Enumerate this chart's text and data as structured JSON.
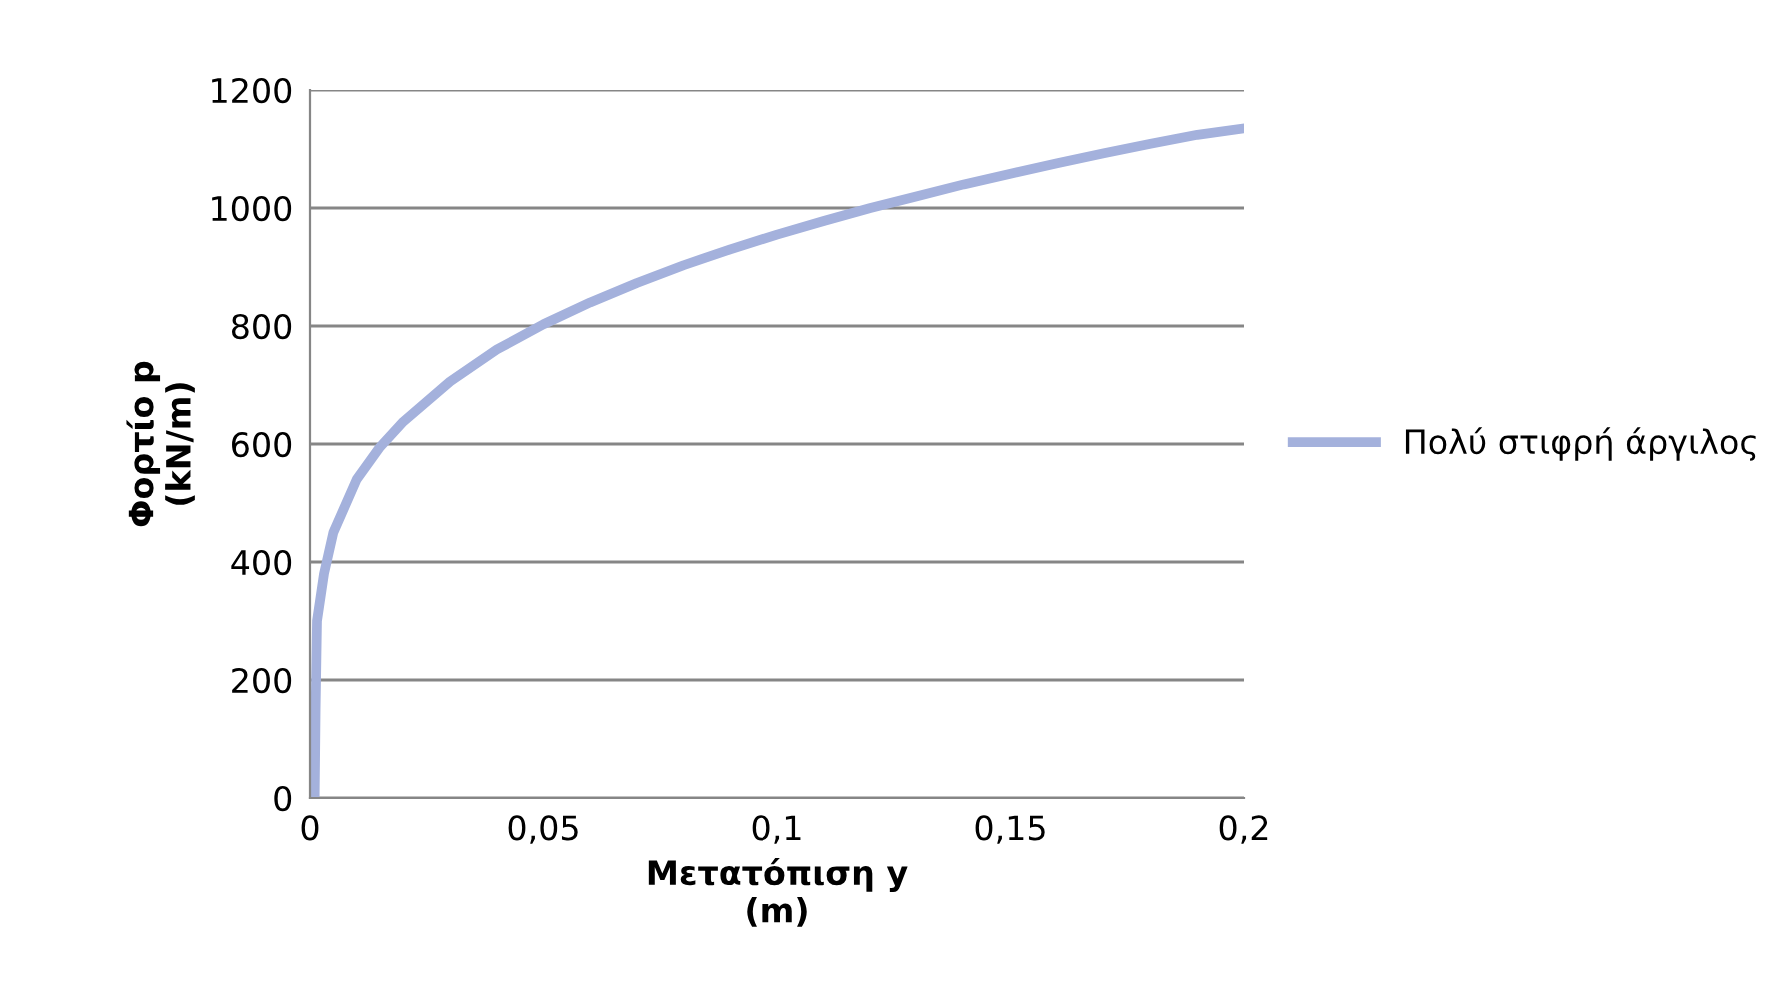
{
  "chart_data": {
    "type": "line",
    "xlabel": "Μετατόπιση y\n(m)",
    "ylabel": "Φορτίο p\n(kN/m)",
    "series": [
      {
        "name": "Πολύ στιφρή άργιλος",
        "color": "#a4b1dc",
        "x": [
          0.001,
          0.0012,
          0.0015,
          0.003,
          0.005,
          0.01,
          0.015,
          0.02,
          0.03,
          0.04,
          0.05,
          0.06,
          0.07,
          0.08,
          0.09,
          0.1,
          0.11,
          0.12,
          0.13,
          0.14,
          0.15,
          0.16,
          0.17,
          0.18,
          0.19,
          0.2
        ],
        "values": [
          0,
          150,
          300,
          380,
          450,
          540,
          595,
          638,
          706,
          760,
          803,
          840,
          873,
          903,
          930,
          955,
          978,
          1000,
          1020,
          1040,
          1058,
          1076,
          1093,
          1109,
          1124,
          1135
        ]
      }
    ],
    "xlim": [
      0,
      0.2
    ],
    "ylim": [
      0,
      1200
    ],
    "xticks": [
      0,
      {
        "value": 0.05,
        "label": "0,05"
      },
      {
        "value": 0.1,
        "label": "0,1"
      },
      {
        "value": 0.15,
        "label": "0,15"
      },
      {
        "value": 0.2,
        "label": "0,2"
      }
    ],
    "yticks": [
      0,
      200,
      400,
      600,
      800,
      1000,
      1200
    ],
    "grid": "y",
    "legend": "right",
    "marker": "none",
    "line_style": "solid"
  }
}
